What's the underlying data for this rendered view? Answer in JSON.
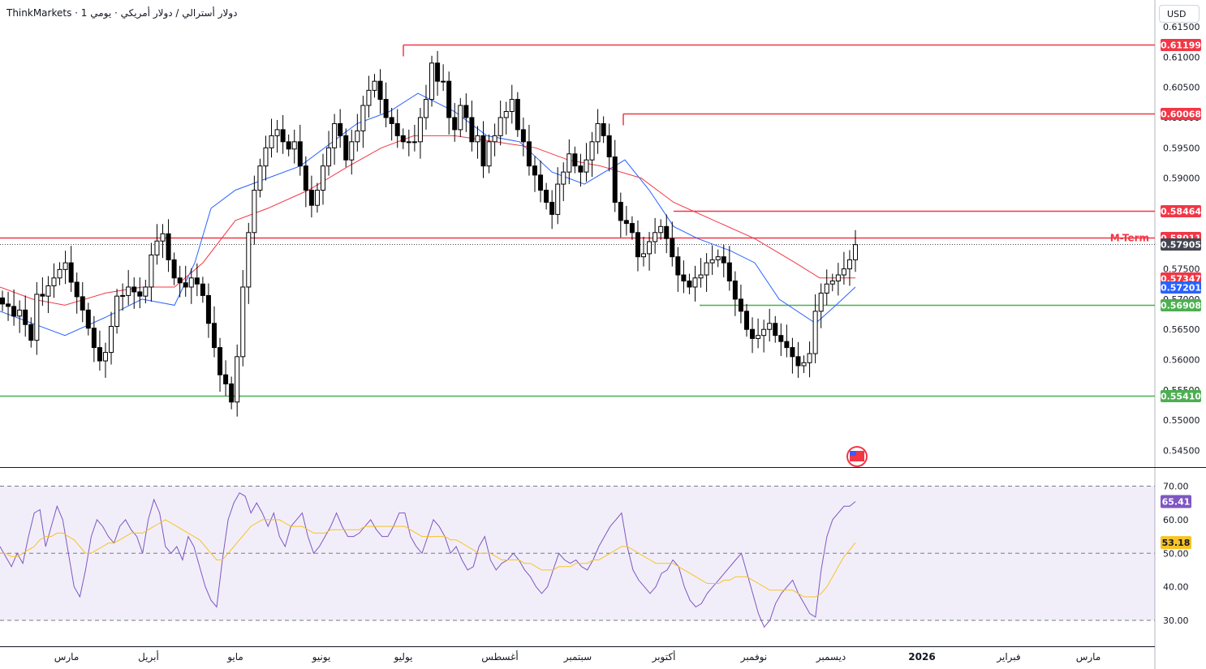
{
  "header": {
    "title": "ThinkMarkets · دولار أسترالي / دولار أمريكي · يومي 1",
    "currency": "USD"
  },
  "chart_data": [
    {
      "type": "candlestick",
      "symbol": "AUD/USD",
      "timeframe": "1D",
      "ylim": [
        0.5425,
        0.6175
      ],
      "y_ticks": [
        "0.54500",
        "0.55000",
        "0.55500",
        "0.56000",
        "0.56500",
        "0.57000",
        "0.57500",
        "0.58000",
        "0.58500",
        "0.59000",
        "0.59500",
        "0.60000",
        "0.60500",
        "0.61000",
        "0.61500"
      ],
      "x_labels": [
        "مارس",
        "أبريل",
        "مايو",
        "يونيو",
        "يوليو",
        "أغسطس",
        "سبتمبر",
        "أكتوبر",
        "نوفمبر",
        "ديسمبر",
        "2026",
        "فبراير",
        "مارس"
      ],
      "series": [
        {
          "name": "EMA fast",
          "color": "#2962ff",
          "points": [
            [
              0,
              0.568
            ],
            [
              40,
              0.566
            ],
            [
              80,
              0.564
            ],
            [
              130,
              0.567
            ],
            [
              175,
              0.57
            ],
            [
              215,
              0.569
            ],
            [
              240,
              0.576
            ],
            [
              260,
              0.585
            ],
            [
              290,
              0.588
            ],
            [
              330,
              0.59
            ],
            [
              370,
              0.592
            ],
            [
              410,
              0.596
            ],
            [
              440,
              0.599
            ],
            [
              480,
              0.601
            ],
            [
              515,
              0.604
            ],
            [
              560,
              0.601
            ],
            [
              600,
              0.597
            ],
            [
              640,
              0.596
            ],
            [
              680,
              0.591
            ],
            [
              720,
              0.589
            ],
            [
              770,
              0.593
            ],
            [
              800,
              0.588
            ],
            [
              830,
              0.582
            ],
            [
              860,
              0.58
            ],
            [
              900,
              0.578
            ],
            [
              930,
              0.576
            ],
            [
              960,
              0.57
            ],
            [
              1005,
              0.566
            ],
            [
              1030,
              0.569
            ],
            [
              1054,
              0.572
            ]
          ]
        },
        {
          "name": "EMA slow",
          "color": "#f23645",
          "points": [
            [
              0,
              0.572
            ],
            [
              40,
              0.57
            ],
            [
              80,
              0.569
            ],
            [
              130,
              0.571
            ],
            [
              175,
              0.572
            ],
            [
              215,
              0.572
            ],
            [
              250,
              0.576
            ],
            [
              290,
              0.583
            ],
            [
              330,
              0.585
            ],
            [
              380,
              0.588
            ],
            [
              430,
              0.592
            ],
            [
              470,
              0.595
            ],
            [
              510,
              0.597
            ],
            [
              560,
              0.597
            ],
            [
              610,
              0.596
            ],
            [
              660,
              0.595
            ],
            [
              700,
              0.593
            ],
            [
              740,
              0.592
            ],
            [
              790,
              0.59
            ],
            [
              830,
              0.586
            ],
            [
              880,
              0.583
            ],
            [
              930,
              0.58
            ],
            [
              980,
              0.576
            ],
            [
              1010,
              0.5735
            ],
            [
              1030,
              0.5735
            ],
            [
              1054,
              0.5735
            ]
          ]
        }
      ],
      "candles_close": [
        0.5692,
        0.5688,
        0.5672,
        0.5682,
        0.5658,
        0.5632,
        0.5708,
        0.5705,
        0.5722,
        0.5735,
        0.5749,
        0.576,
        0.5728,
        0.5704,
        0.5682,
        0.5652,
        0.562,
        0.5598,
        0.5612,
        0.5655,
        0.5705,
        0.5706,
        0.572,
        0.5712,
        0.5705,
        0.572,
        0.5773,
        0.5796,
        0.5808,
        0.5765,
        0.5735,
        0.5727,
        0.572,
        0.5735,
        0.5725,
        0.5706,
        0.566,
        0.562,
        0.5575,
        0.556,
        0.553,
        0.5605,
        0.572,
        0.581,
        0.588,
        0.592,
        0.595,
        0.597,
        0.598,
        0.596,
        0.5948,
        0.596,
        0.592,
        0.588,
        0.5855,
        0.588,
        0.592,
        0.595,
        0.599,
        0.597,
        0.593,
        0.596,
        0.5978,
        0.602,
        0.6045,
        0.606,
        0.603,
        0.6,
        0.599,
        0.597,
        0.596,
        0.596,
        0.596,
        0.6,
        0.603,
        0.609,
        0.606,
        0.606,
        0.6,
        0.598,
        0.602,
        0.6,
        0.596,
        0.597,
        0.592,
        0.596,
        0.597,
        0.6,
        0.601,
        0.603,
        0.598,
        0.596,
        0.592,
        0.5905,
        0.588,
        0.586,
        0.584,
        0.589,
        0.591,
        0.594,
        0.592,
        0.591,
        0.593,
        0.596,
        0.599,
        0.597,
        0.5935,
        0.586,
        0.583,
        0.5825,
        0.581,
        0.577,
        0.5775,
        0.5795,
        0.581,
        0.582,
        0.58,
        0.577,
        0.574,
        0.573,
        0.572,
        0.5735,
        0.574,
        0.576,
        0.5765,
        0.577,
        0.576,
        0.573,
        0.57,
        0.568,
        0.565,
        0.5635,
        0.564,
        0.565,
        0.566,
        0.564,
        0.563,
        0.562,
        0.5605,
        0.559,
        0.5595,
        0.561,
        0.568,
        0.571,
        0.5725,
        0.573,
        0.574,
        0.575,
        0.5765,
        0.579
      ],
      "levels": [
        {
          "value": 0.61199,
          "label": "0.61199",
          "color": "#f23645"
        },
        {
          "value": 0.60068,
          "label": "0.60068",
          "color": "#f23645"
        },
        {
          "value": 0.58464,
          "label": "0.58464",
          "color": "#f23645"
        },
        {
          "value": 0.58011,
          "label": "0.58011",
          "color": "#f23645",
          "annotation": "M-Term"
        },
        {
          "value": 0.56908,
          "label": "0.56908",
          "color": "#4caf50"
        },
        {
          "value": 0.5541,
          "label": "0.55410",
          "color": "#4caf50"
        }
      ],
      "current_price": {
        "value": 0.57905,
        "label": "0.57905",
        "color": "#434651"
      },
      "ema_labels": [
        {
          "value": 0.57347,
          "label": "0.57347",
          "color": "#f23645"
        },
        {
          "value": 0.57201,
          "label": "0.57201",
          "color": "#2962ff"
        }
      ],
      "up_color": "#000000",
      "down_color": "#000000"
    },
    {
      "type": "line",
      "name": "RSI",
      "ylim": [
        25,
        75
      ],
      "y_ticks": [
        "30.00",
        "40.00",
        "50.00",
        "60.00",
        "70.00"
      ],
      "band": [
        30,
        70
      ],
      "band_color": "#7e57c2",
      "series": [
        {
          "name": "RSI",
          "color": "#7e57c2",
          "last_label": "65.41",
          "values": [
            52,
            49,
            46,
            50,
            47,
            55,
            62,
            63,
            52,
            58,
            64,
            60,
            50,
            40,
            37,
            45,
            55,
            60,
            58,
            55,
            53,
            58,
            60,
            57,
            55,
            50,
            60,
            66,
            62,
            52,
            50,
            52,
            48,
            55,
            52,
            46,
            40,
            36,
            34,
            48,
            60,
            65,
            68,
            67,
            62,
            65,
            62,
            58,
            62,
            55,
            52,
            58,
            60,
            62,
            55,
            50,
            52,
            55,
            58,
            62,
            58,
            55,
            55,
            56,
            58,
            60,
            57,
            55,
            55,
            58,
            62,
            62,
            55,
            52,
            50,
            55,
            60,
            58,
            55,
            50,
            52,
            48,
            45,
            46,
            52,
            55,
            48,
            45,
            47,
            48,
            50,
            48,
            45,
            43,
            40,
            38,
            40,
            45,
            50,
            48,
            47,
            48,
            46,
            45,
            48,
            52,
            55,
            58,
            60,
            62,
            52,
            45,
            42,
            40,
            38,
            40,
            44,
            45,
            48,
            46,
            40,
            36,
            34,
            35,
            38,
            40,
            42,
            44,
            46,
            48,
            50,
            44,
            38,
            32,
            28,
            30,
            35,
            38,
            40,
            42,
            38,
            35,
            32,
            31,
            45,
            55,
            60,
            62,
            64,
            64,
            65.41
          ]
        },
        {
          "name": "RSI-based MA",
          "color": "#f7c325",
          "last_label": "53.18",
          "values": [
            50,
            50,
            49,
            49,
            50,
            51,
            52,
            54,
            55,
            55,
            56,
            56,
            55,
            54,
            52,
            50,
            50,
            51,
            52,
            53,
            53,
            54,
            55,
            56,
            56,
            56,
            57,
            58,
            59,
            60,
            59,
            58,
            57,
            56,
            55,
            54,
            52,
            50,
            48,
            48,
            50,
            52,
            54,
            56,
            58,
            59,
            60,
            60,
            60,
            60,
            59,
            58,
            58,
            58,
            57,
            56,
            56,
            56,
            57,
            57,
            57,
            57,
            57,
            57,
            58,
            58,
            58,
            58,
            58,
            58,
            58,
            58,
            57,
            56,
            55,
            55,
            55,
            55,
            55,
            54,
            54,
            53,
            52,
            51,
            50,
            50,
            50,
            49,
            48,
            48,
            48,
            48,
            47,
            47,
            46,
            45,
            45,
            45,
            46,
            46,
            46,
            47,
            47,
            47,
            48,
            48,
            49,
            50,
            51,
            52,
            52,
            51,
            50,
            49,
            48,
            47,
            47,
            47,
            47,
            46,
            45,
            44,
            43,
            42,
            41,
            41,
            41,
            42,
            42,
            43,
            43,
            43,
            42,
            41,
            40,
            39,
            39,
            39,
            39,
            39,
            38,
            37,
            37,
            37,
            38,
            40,
            43,
            46,
            49,
            51,
            53.18
          ]
        }
      ]
    }
  ],
  "x_axis_labels": [
    "مارس",
    "أبريل",
    "مايو",
    "يونيو",
    "يوليو",
    "أغسطس",
    "سبتمبر",
    "أكتوبر",
    "نوفمبر",
    "ديسمبر",
    "2026",
    "فبراير",
    "مارس"
  ],
  "annotation": {
    "m_term": "M-Term"
  }
}
